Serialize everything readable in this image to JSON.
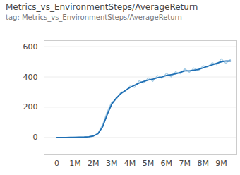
{
  "chart_data": {
    "type": "line",
    "title": "Metrics_vs_EnvironmentSteps/AverageReturn",
    "subtitle": "tag: Metrics_vs_EnvironmentSteps/AverageReturn",
    "x": [
      0,
      250000,
      500000,
      750000,
      1000000,
      1250000,
      1500000,
      1750000,
      2000000,
      2250000,
      2500000,
      2750000,
      3000000,
      3250000,
      3500000,
      3750000,
      4000000,
      4250000,
      4500000,
      4750000,
      5000000,
      5250000,
      5500000,
      5750000,
      6000000,
      6250000,
      6500000,
      6750000,
      7000000,
      7250000,
      7500000,
      7750000,
      8000000,
      8250000,
      8500000,
      8750000,
      9000000,
      9250000,
      9500000
    ],
    "series": [
      {
        "color": "#a6cde6",
        "values": [
          0,
          0,
          1,
          0,
          2,
          3,
          2,
          6,
          12,
          30,
          85,
          170,
          235,
          250,
          300,
          305,
          340,
          330,
          375,
          360,
          395,
          370,
          410,
          390,
          425,
          400,
          435,
          420,
          455,
          430,
          460,
          440,
          475,
          465,
          495,
          480,
          520,
          490,
          515
        ]
      },
      {
        "color": "#1f6fb4",
        "values": [
          0,
          0,
          0,
          1,
          1,
          2,
          3,
          5,
          10,
          25,
          70,
          150,
          220,
          260,
          290,
          310,
          330,
          345,
          360,
          370,
          380,
          385,
          395,
          400,
          410,
          415,
          420,
          430,
          440,
          440,
          445,
          450,
          460,
          470,
          480,
          490,
          500,
          505,
          505
        ]
      }
    ],
    "xlim": [
      -700000,
      9850000
    ],
    "xticks": [
      0,
      {
        "value": 1000000,
        "label": "1M"
      },
      {
        "value": 2000000,
        "label": "2M"
      },
      {
        "value": 3000000,
        "label": "3M"
      },
      {
        "value": 4000000,
        "label": "4M"
      },
      {
        "value": 5000000,
        "label": "5M"
      },
      {
        "value": 6000000,
        "label": "6M"
      },
      {
        "value": 7000000,
        "label": "7M"
      },
      {
        "value": 8000000,
        "label": "8M"
      },
      {
        "value": 9000000,
        "label": "9M"
      }
    ],
    "ylim": [
      -110,
      640
    ],
    "yticks": [
      0,
      200,
      400,
      600
    ],
    "grid": true
  }
}
